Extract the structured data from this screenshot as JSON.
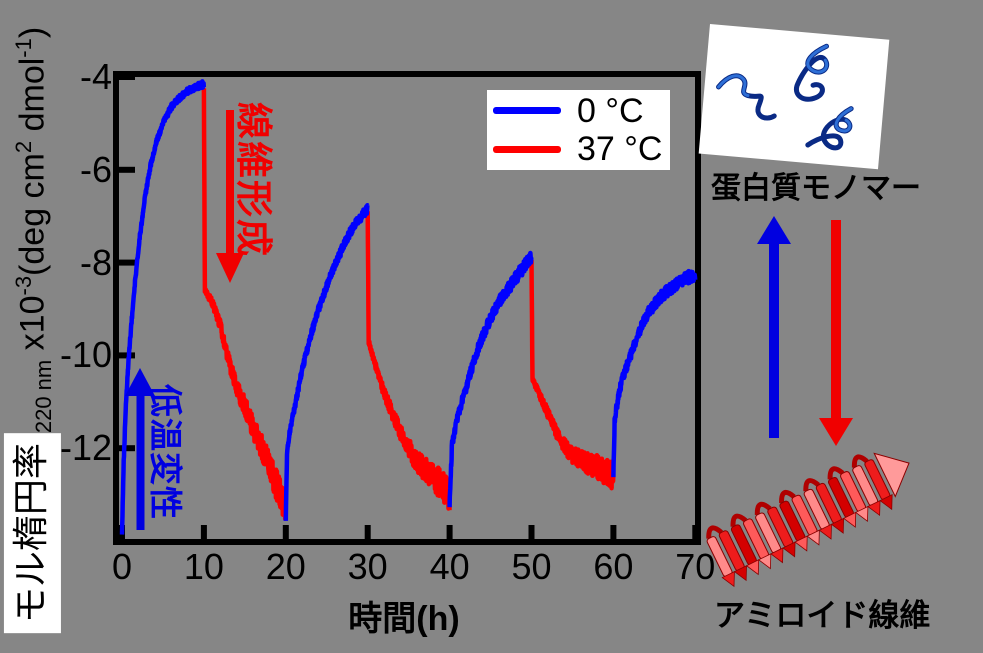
{
  "figure": {
    "background": "#868686"
  },
  "axes": {
    "x_label": "時間(h)",
    "y_label": {
      "main": "モル楕円率",
      "sub": "220 nm",
      "mult": " x10",
      "mult_exp": "-3",
      "unit_a": "(deg cm",
      "unit_a_exp": "2",
      "unit_b": " dmol",
      "unit_b_exp": "-1",
      "unit_close": ")"
    }
  },
  "annotations": {
    "fibril_formation": "線維形成",
    "cold_denaturation": "低温変性",
    "fibril_formation_color": "#f00000",
    "cold_denaturation_color": "#0000e0"
  },
  "diagram": {
    "monomer_label": "蛋白質モノマー",
    "fibril_label": "アミロイド線維",
    "monomer_to_fibril_arrow_color": "#f00000",
    "fibril_to_monomer_arrow_color": "#0000e0"
  },
  "chart_data": {
    "type": "line",
    "title": "",
    "xlabel": "時間(h)",
    "ylabel": "モル楕円率 220 nm x10^-3 (deg cm^2 dmol^-1)",
    "xlim": [
      0,
      70
    ],
    "ylim": [
      -14.1,
      -3.8
    ],
    "x_ticks": [
      0,
      10,
      20,
      30,
      40,
      50,
      60,
      70
    ],
    "y_ticks": [
      -4,
      -6,
      -8,
      -10,
      -12
    ],
    "grid": false,
    "legend_position": "upper center",
    "series": [
      {
        "name": "0 °C",
        "color": "#0000ff",
        "segments": [
          {
            "noise": [
              0.05,
              0.07
            ],
            "points": [
              [
                0,
                -13.9
              ],
              [
                0.2,
                -12.3
              ],
              [
                0.5,
                -11.0
              ],
              [
                0.8,
                -10.1
              ],
              [
                1.2,
                -9.2
              ],
              [
                1.6,
                -8.4
              ],
              [
                2.2,
                -7.4
              ],
              [
                2.8,
                -6.6
              ],
              [
                3.5,
                -5.9
              ],
              [
                4.2,
                -5.4
              ],
              [
                5,
                -5.0
              ],
              [
                6,
                -4.65
              ],
              [
                7,
                -4.45
              ],
              [
                8,
                -4.3
              ],
              [
                9,
                -4.22
              ],
              [
                10,
                -4.15
              ]
            ]
          },
          {
            "noise": [
              0.07,
              0.1
            ],
            "points": [
              [
                20,
                -13.5
              ],
              [
                20.15,
                -12.1
              ],
              [
                20.6,
                -11.5
              ],
              [
                21,
                -11.2
              ],
              [
                22,
                -10.3
              ],
              [
                23,
                -9.6
              ],
              [
                24,
                -9.0
              ],
              [
                25,
                -8.5
              ],
              [
                26,
                -8.05
              ],
              [
                27,
                -7.65
              ],
              [
                28,
                -7.3
              ],
              [
                29,
                -7.05
              ],
              [
                30,
                -6.85
              ]
            ]
          },
          {
            "noise": [
              0.1,
              0.14
            ],
            "points": [
              [
                40,
                -13.2
              ],
              [
                40.3,
                -11.9
              ],
              [
                41,
                -11.3
              ],
              [
                42,
                -10.7
              ],
              [
                43,
                -10.1
              ],
              [
                44,
                -9.6
              ],
              [
                45,
                -9.2
              ],
              [
                46,
                -8.85
              ],
              [
                47,
                -8.6
              ],
              [
                48,
                -8.35
              ],
              [
                49,
                -8.1
              ],
              [
                50,
                -7.9
              ]
            ]
          },
          {
            "noise": [
              0.1,
              0.14
            ],
            "points": [
              [
                60,
                -12.65
              ],
              [
                60.15,
                -11.4
              ],
              [
                60.6,
                -10.9
              ],
              [
                61,
                -10.55
              ],
              [
                62,
                -10.05
              ],
              [
                63,
                -9.55
              ],
              [
                64,
                -9.15
              ],
              [
                65,
                -8.9
              ],
              [
                66,
                -8.7
              ],
              [
                67,
                -8.55
              ],
              [
                68,
                -8.42
              ],
              [
                69,
                -8.32
              ],
              [
                70,
                -8.27
              ]
            ]
          }
        ]
      },
      {
        "name": "37 °C",
        "color": "#ff0000",
        "segments": [
          {
            "noise": [
              0.05,
              0.35
            ],
            "points": [
              [
                10,
                -4.2
              ],
              [
                10.12,
                -8.6
              ],
              [
                11,
                -8.85
              ],
              [
                12,
                -9.35
              ],
              [
                13,
                -10.1
              ],
              [
                14,
                -10.7
              ],
              [
                15,
                -11.1
              ],
              [
                16,
                -11.55
              ],
              [
                17,
                -11.95
              ],
              [
                18,
                -12.4
              ],
              [
                19,
                -12.85
              ],
              [
                20,
                -13.35
              ]
            ]
          },
          {
            "noise": [
              0.05,
              0.35
            ],
            "points": [
              [
                30,
                -6.85
              ],
              [
                30.12,
                -9.7
              ],
              [
                31,
                -10.25
              ],
              [
                32,
                -10.8
              ],
              [
                33,
                -11.25
              ],
              [
                34,
                -11.65
              ],
              [
                35,
                -12.0
              ],
              [
                36,
                -12.3
              ],
              [
                37,
                -12.45
              ],
              [
                38,
                -12.6
              ],
              [
                39,
                -12.8
              ],
              [
                40,
                -13.05
              ]
            ]
          },
          {
            "noise": [
              0.05,
              0.3
            ],
            "points": [
              [
                50,
                -7.9
              ],
              [
                50.12,
                -10.5
              ],
              [
                51,
                -10.85
              ],
              [
                52,
                -11.25
              ],
              [
                53,
                -11.65
              ],
              [
                54,
                -11.95
              ],
              [
                55,
                -12.15
              ],
              [
                56,
                -12.25
              ],
              [
                57,
                -12.35
              ],
              [
                58,
                -12.4
              ],
              [
                59,
                -12.5
              ],
              [
                60,
                -12.6
              ]
            ]
          }
        ]
      }
    ]
  },
  "legend": {
    "items": [
      {
        "label": "0 °C",
        "color": "#0000ff"
      },
      {
        "label": "37 °C",
        "color": "#ff0000"
      }
    ]
  }
}
